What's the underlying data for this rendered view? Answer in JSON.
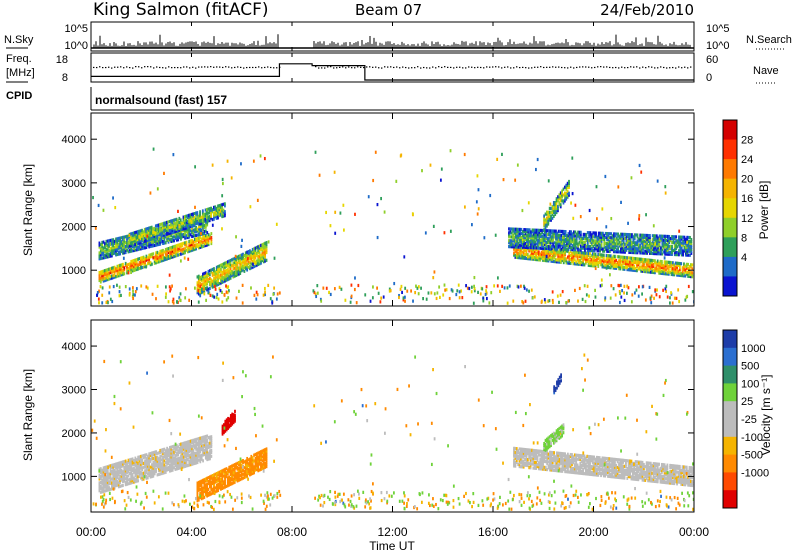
{
  "header": {
    "station": "King Salmon (fitACF)",
    "beam": "Beam 07",
    "date": "24/Feb/2010"
  },
  "labels": {
    "nsky": "N.Sky",
    "freq_line1": "Freq.",
    "freq_line2": "[MHz]",
    "cpid": "CPID",
    "nsearch": "N.Search",
    "nave": "Nave",
    "cpid_value": "normalsound (fast) 157"
  },
  "strip_ticks": {
    "noise_left": [
      "10^5",
      "10^0"
    ],
    "noise_right": [
      "10^5",
      "10^0"
    ],
    "freq_left": [
      "18",
      "8"
    ],
    "freq_right": [
      "60",
      "0"
    ]
  },
  "colorbar_power": {
    "label": "Power [dB]",
    "ticks": [
      "28",
      "24",
      "20",
      "16",
      "12",
      "8",
      "4"
    ],
    "colors": [
      "#d40000",
      "#ff3000",
      "#ff7a00",
      "#f5b400",
      "#e6d600",
      "#8fcf2a",
      "#2e9f5a",
      "#1e6bc8",
      "#0a14d0"
    ]
  },
  "colorbar_velocity": {
    "label": "Velocity [m s⁻¹]",
    "ticks": [
      "1000",
      "500",
      "100",
      "25",
      "-25",
      "-100",
      "-500",
      "-1000"
    ],
    "colors": [
      "#1e3da8",
      "#2b6fd0",
      "#2f8f6a",
      "#6fd23a",
      "#bcbcbc",
      "#bcbcbc",
      "#f5b400",
      "#ff8a00",
      "#ff4a00",
      "#e00000"
    ]
  },
  "chart_data": {
    "type": "heatmap",
    "xlabel": "Time UT",
    "ylabel": "Slant Range [km]",
    "x_ticks": [
      "00:00",
      "04:00",
      "08:00",
      "12:00",
      "16:00",
      "20:00",
      "00:00"
    ],
    "y_ticks": [
      1000,
      2000,
      3000,
      4000
    ],
    "xlim_hours": [
      0,
      24
    ],
    "ylim_km": [
      180,
      4600
    ],
    "panels": [
      {
        "name": "power",
        "regions": [
          {
            "t0": 0.3,
            "t1": 4.8,
            "r_start": 850,
            "r_end": 1750,
            "thickness": 260,
            "intensity": 0.85
          },
          {
            "t0": 0.3,
            "t1": 4.6,
            "r_start": 1450,
            "r_end": 2050,
            "thickness": 380,
            "intensity": 0.35
          },
          {
            "t0": 1.5,
            "t1": 5.3,
            "r_start": 1700,
            "r_end": 2400,
            "thickness": 300,
            "intensity": 0.45
          },
          {
            "t0": 4.2,
            "t1": 7.0,
            "r_start": 650,
            "r_end": 1450,
            "thickness": 420,
            "intensity": 0.65
          },
          {
            "t0": 16.8,
            "t1": 23.9,
            "r_start": 1450,
            "r_end": 1000,
            "thickness": 300,
            "intensity": 0.8
          },
          {
            "t0": 16.6,
            "t1": 23.9,
            "r_start": 1750,
            "r_end": 1550,
            "thickness": 420,
            "intensity": 0.3
          },
          {
            "t0": 18.0,
            "t1": 19.0,
            "r_start": 2100,
            "r_end": 2900,
            "thickness": 350,
            "intensity": 0.5
          }
        ]
      },
      {
        "name": "velocity",
        "regions": [
          {
            "t0": 0.3,
            "t1": 4.8,
            "r_start": 900,
            "r_end": 1700,
            "thickness": 550,
            "velocity": 0
          },
          {
            "t0": 4.2,
            "t1": 7.0,
            "r_start": 650,
            "r_end": 1450,
            "thickness": 420,
            "velocity": -300
          },
          {
            "t0": 5.2,
            "t1": 5.7,
            "r_start": 2100,
            "r_end": 2400,
            "thickness": 250,
            "velocity": -900
          },
          {
            "t0": 16.8,
            "t1": 23.9,
            "r_start": 1450,
            "r_end": 1000,
            "thickness": 420,
            "velocity": 0
          },
          {
            "t0": 18.0,
            "t1": 18.8,
            "r_start": 1700,
            "r_end": 2100,
            "thickness": 250,
            "velocity": 100
          },
          {
            "t0": 18.4,
            "t1": 18.7,
            "r_start": 3000,
            "r_end": 3300,
            "thickness": 150,
            "velocity": 700
          }
        ]
      }
    ],
    "frequency_mhz": [
      {
        "t0": 0.0,
        "t1": 7.5,
        "value": 10
      },
      {
        "t0": 7.5,
        "t1": 8.8,
        "value": 17
      },
      {
        "t0": 8.8,
        "t1": 10.9,
        "value": 16
      },
      {
        "t0": 10.9,
        "t1": 24.0,
        "value": 8
      }
    ],
    "gaps_hours": [
      [
        7.5,
        8.8
      ]
    ]
  }
}
